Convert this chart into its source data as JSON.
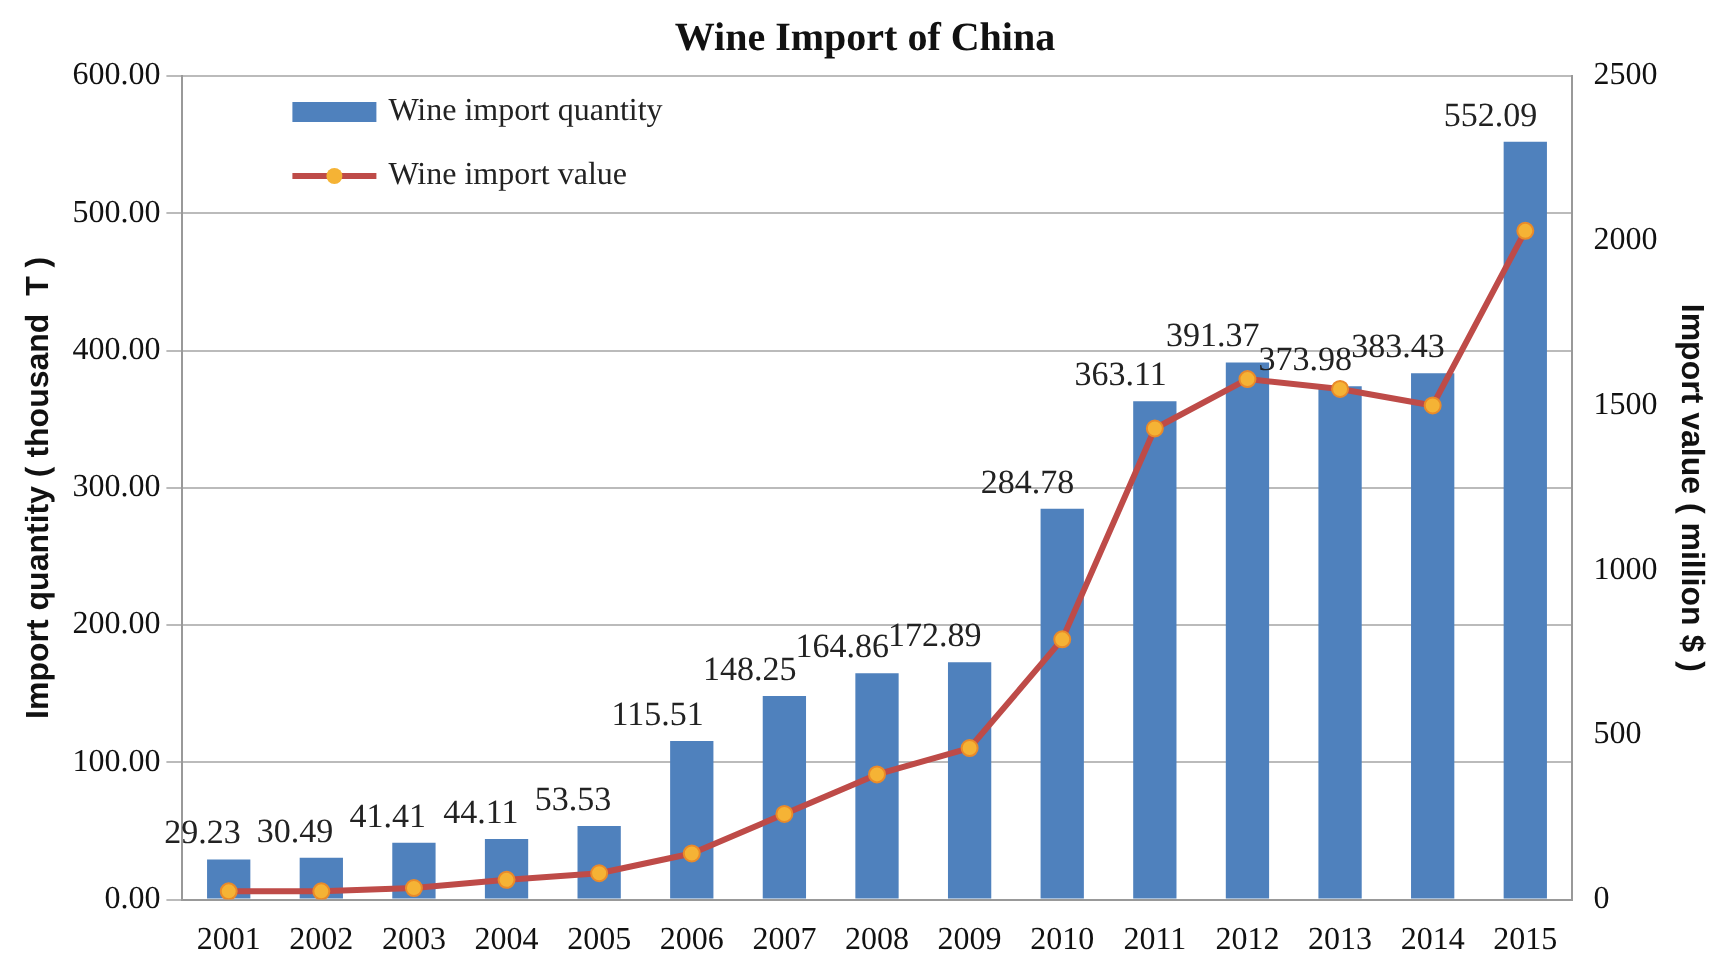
{
  "chart_data": {
    "type": "bar",
    "title": "Wine Import of China",
    "ylabel": "Import quantity ( thousand  T )",
    "y2label": "Import value ( million $ )",
    "categories": [
      "2001",
      "2002",
      "2003",
      "2004",
      "2005",
      "2006",
      "2007",
      "2008",
      "2009",
      "2010",
      "2011",
      "2012",
      "2013",
      "2014",
      "2015"
    ],
    "series": [
      {
        "name": "Wine import quantity",
        "color": "#4f81bd",
        "values": [
          29.23,
          30.49,
          41.41,
          44.11,
          53.53,
          115.51,
          148.25,
          164.86,
          172.89,
          284.78,
          363.11,
          391.37,
          373.98,
          383.43,
          552.09
        ],
        "value_labels": [
          "29.23",
          "30.49",
          "41.41",
          "44.11",
          "53.53",
          "115.51",
          "148.25",
          "164.86",
          "172.89",
          "284.78",
          "363.11",
          "391.37",
          "373.98",
          "383.43",
          "552.09"
        ]
      },
      {
        "name": "Wine import value",
        "type": "line",
        "axis": "y2",
        "color": "#be4b48",
        "values": [
          25,
          25,
          35,
          60,
          80,
          140,
          260,
          380,
          460,
          790,
          1430,
          1580,
          1550,
          1500,
          2030
        ]
      }
    ],
    "ylim": [
      0,
      600
    ],
    "yticks": [
      {
        "value": 0,
        "label": "0.00"
      },
      {
        "value": 100,
        "label": "100.00"
      },
      {
        "value": 200,
        "label": "200.00"
      },
      {
        "value": 300,
        "label": "300.00"
      },
      {
        "value": 400,
        "label": "400.00"
      },
      {
        "value": 500,
        "label": "500.00"
      },
      {
        "value": 600,
        "label": "600.00"
      }
    ],
    "y2lim": [
      0,
      2500
    ],
    "y2ticks": [
      0,
      500,
      1000,
      1500,
      2000,
      2500
    ],
    "grid": "y",
    "legend": "top left",
    "marker": "circle",
    "line_style": "solid"
  }
}
